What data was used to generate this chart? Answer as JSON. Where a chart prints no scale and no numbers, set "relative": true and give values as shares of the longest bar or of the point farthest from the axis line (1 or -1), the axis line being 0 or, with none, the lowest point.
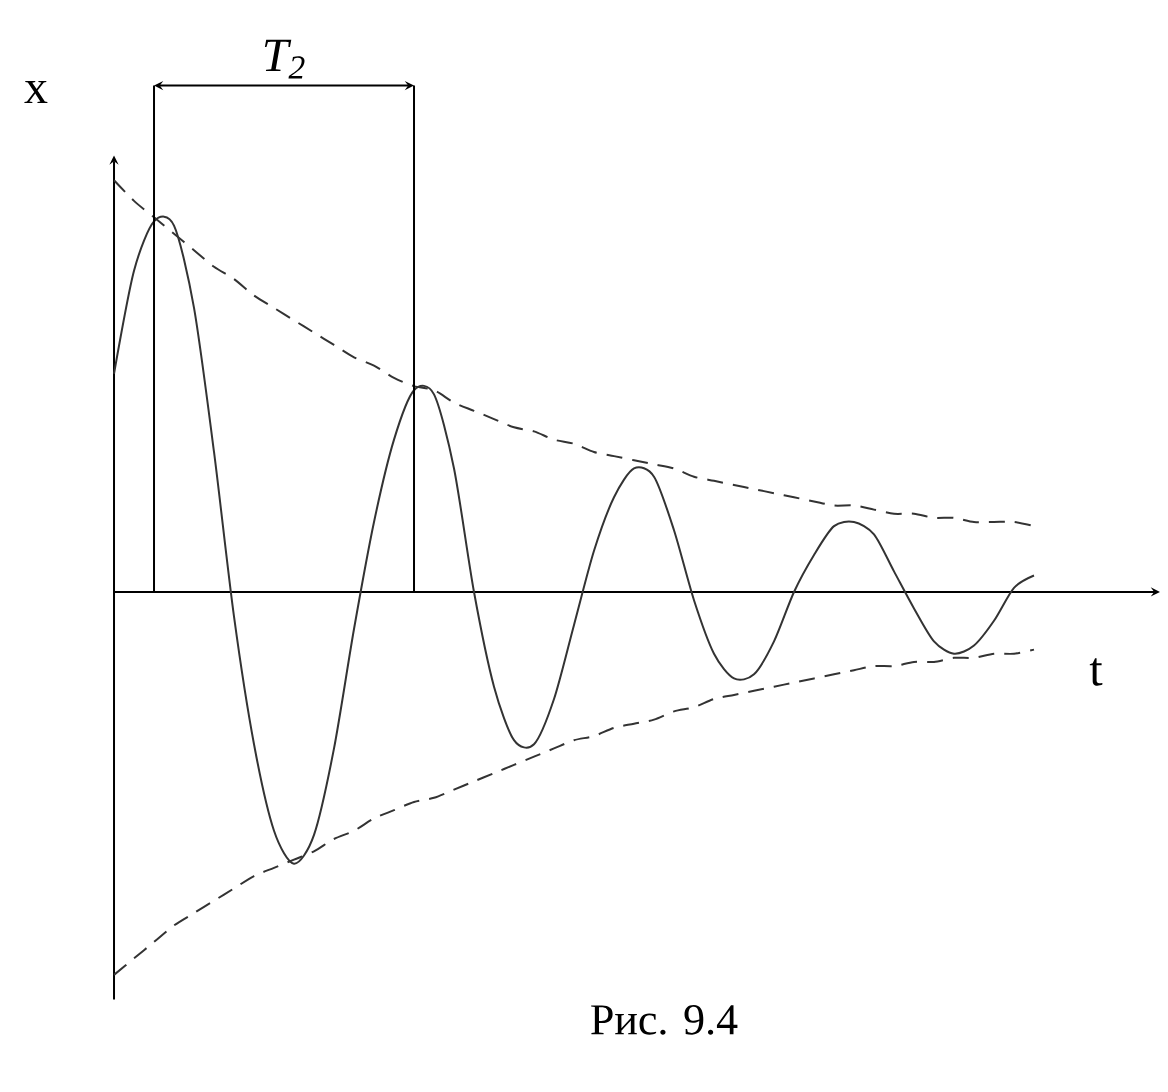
{
  "chart_data": {
    "type": "line",
    "relative": true,
    "xlabel": "t",
    "ylabel": "x",
    "marker": "none",
    "annotations": [
      "T$_{2}$",
      "Рис. 9.4"
    ],
    "categories": [
      null,
      null,
      null,
      null,
      null,
      null,
      null,
      null,
      null,
      null,
      null,
      null,
      null,
      null,
      null,
      null,
      null,
      null,
      null,
      null,
      null,
      null,
      null,
      null,
      null,
      null,
      null,
      null,
      null,
      null,
      null,
      null,
      null,
      null,
      null,
      null,
      null,
      null,
      null,
      null,
      null,
      null,
      null,
      null,
      null,
      null,
      null
    ],
    "series": [
      {
        "color": "#333333",
        "line_style": "solid",
        "values": [
          0.53,
          0.78,
          0.9,
          0.89,
          0.69,
          0.34,
          -0.06,
          -0.37,
          -0.58,
          -0.66,
          -0.59,
          -0.38,
          -0.09,
          0.17,
          0.37,
          0.49,
          0.48,
          0.3,
          0,
          -0.23,
          -0.36,
          -0.37,
          -0.26,
          -0.08,
          0.1,
          0.23,
          0.3,
          0.28,
          0.15,
          -0.02,
          -0.15,
          -0.21,
          -0.2,
          -0.12,
          0,
          0.09,
          0.16,
          0.17,
          0.14,
          0.05,
          -0.04,
          -0.12,
          -0.15,
          -0.13,
          -0.07,
          0.01,
          0.04
        ]
      },
      {
        "color": "#333333",
        "line_style": "dashed",
        "values": [
          1.0,
          0.95,
          0.91,
          0.87,
          0.83,
          0.79,
          0.76,
          0.72,
          0.69,
          0.66,
          0.63,
          0.6,
          0.57,
          0.55,
          0.52,
          0.5,
          0.49,
          0.46,
          0.44,
          0.42,
          0.4,
          0.39,
          0.37,
          0.36,
          0.34,
          0.33,
          0.32,
          0.31,
          0.3,
          0.28,
          0.27,
          0.26,
          0.25,
          0.24,
          0.23,
          0.22,
          0.21,
          0.21,
          0.2,
          0.19,
          0.19,
          0.18,
          0.18,
          0.17,
          0.17,
          0.17,
          0.16
        ]
      },
      {
        "color": "#333333",
        "line_style": "dashed",
        "values": [
          -0.93,
          -0.89,
          -0.85,
          -0.81,
          -0.78,
          -0.75,
          -0.72,
          -0.69,
          -0.67,
          -0.65,
          -0.63,
          -0.6,
          -0.58,
          -0.55,
          -0.53,
          -0.51,
          -0.5,
          -0.48,
          -0.46,
          -0.44,
          -0.42,
          -0.4,
          -0.38,
          -0.36,
          -0.35,
          -0.33,
          -0.32,
          -0.31,
          -0.29,
          -0.28,
          -0.26,
          -0.25,
          -0.24,
          -0.23,
          -0.22,
          -0.21,
          -0.2,
          -0.19,
          -0.18,
          -0.18,
          -0.17,
          -0.17,
          -0.16,
          -0.16,
          -0.15,
          -0.15,
          -0.14
        ]
      }
    ]
  }
}
